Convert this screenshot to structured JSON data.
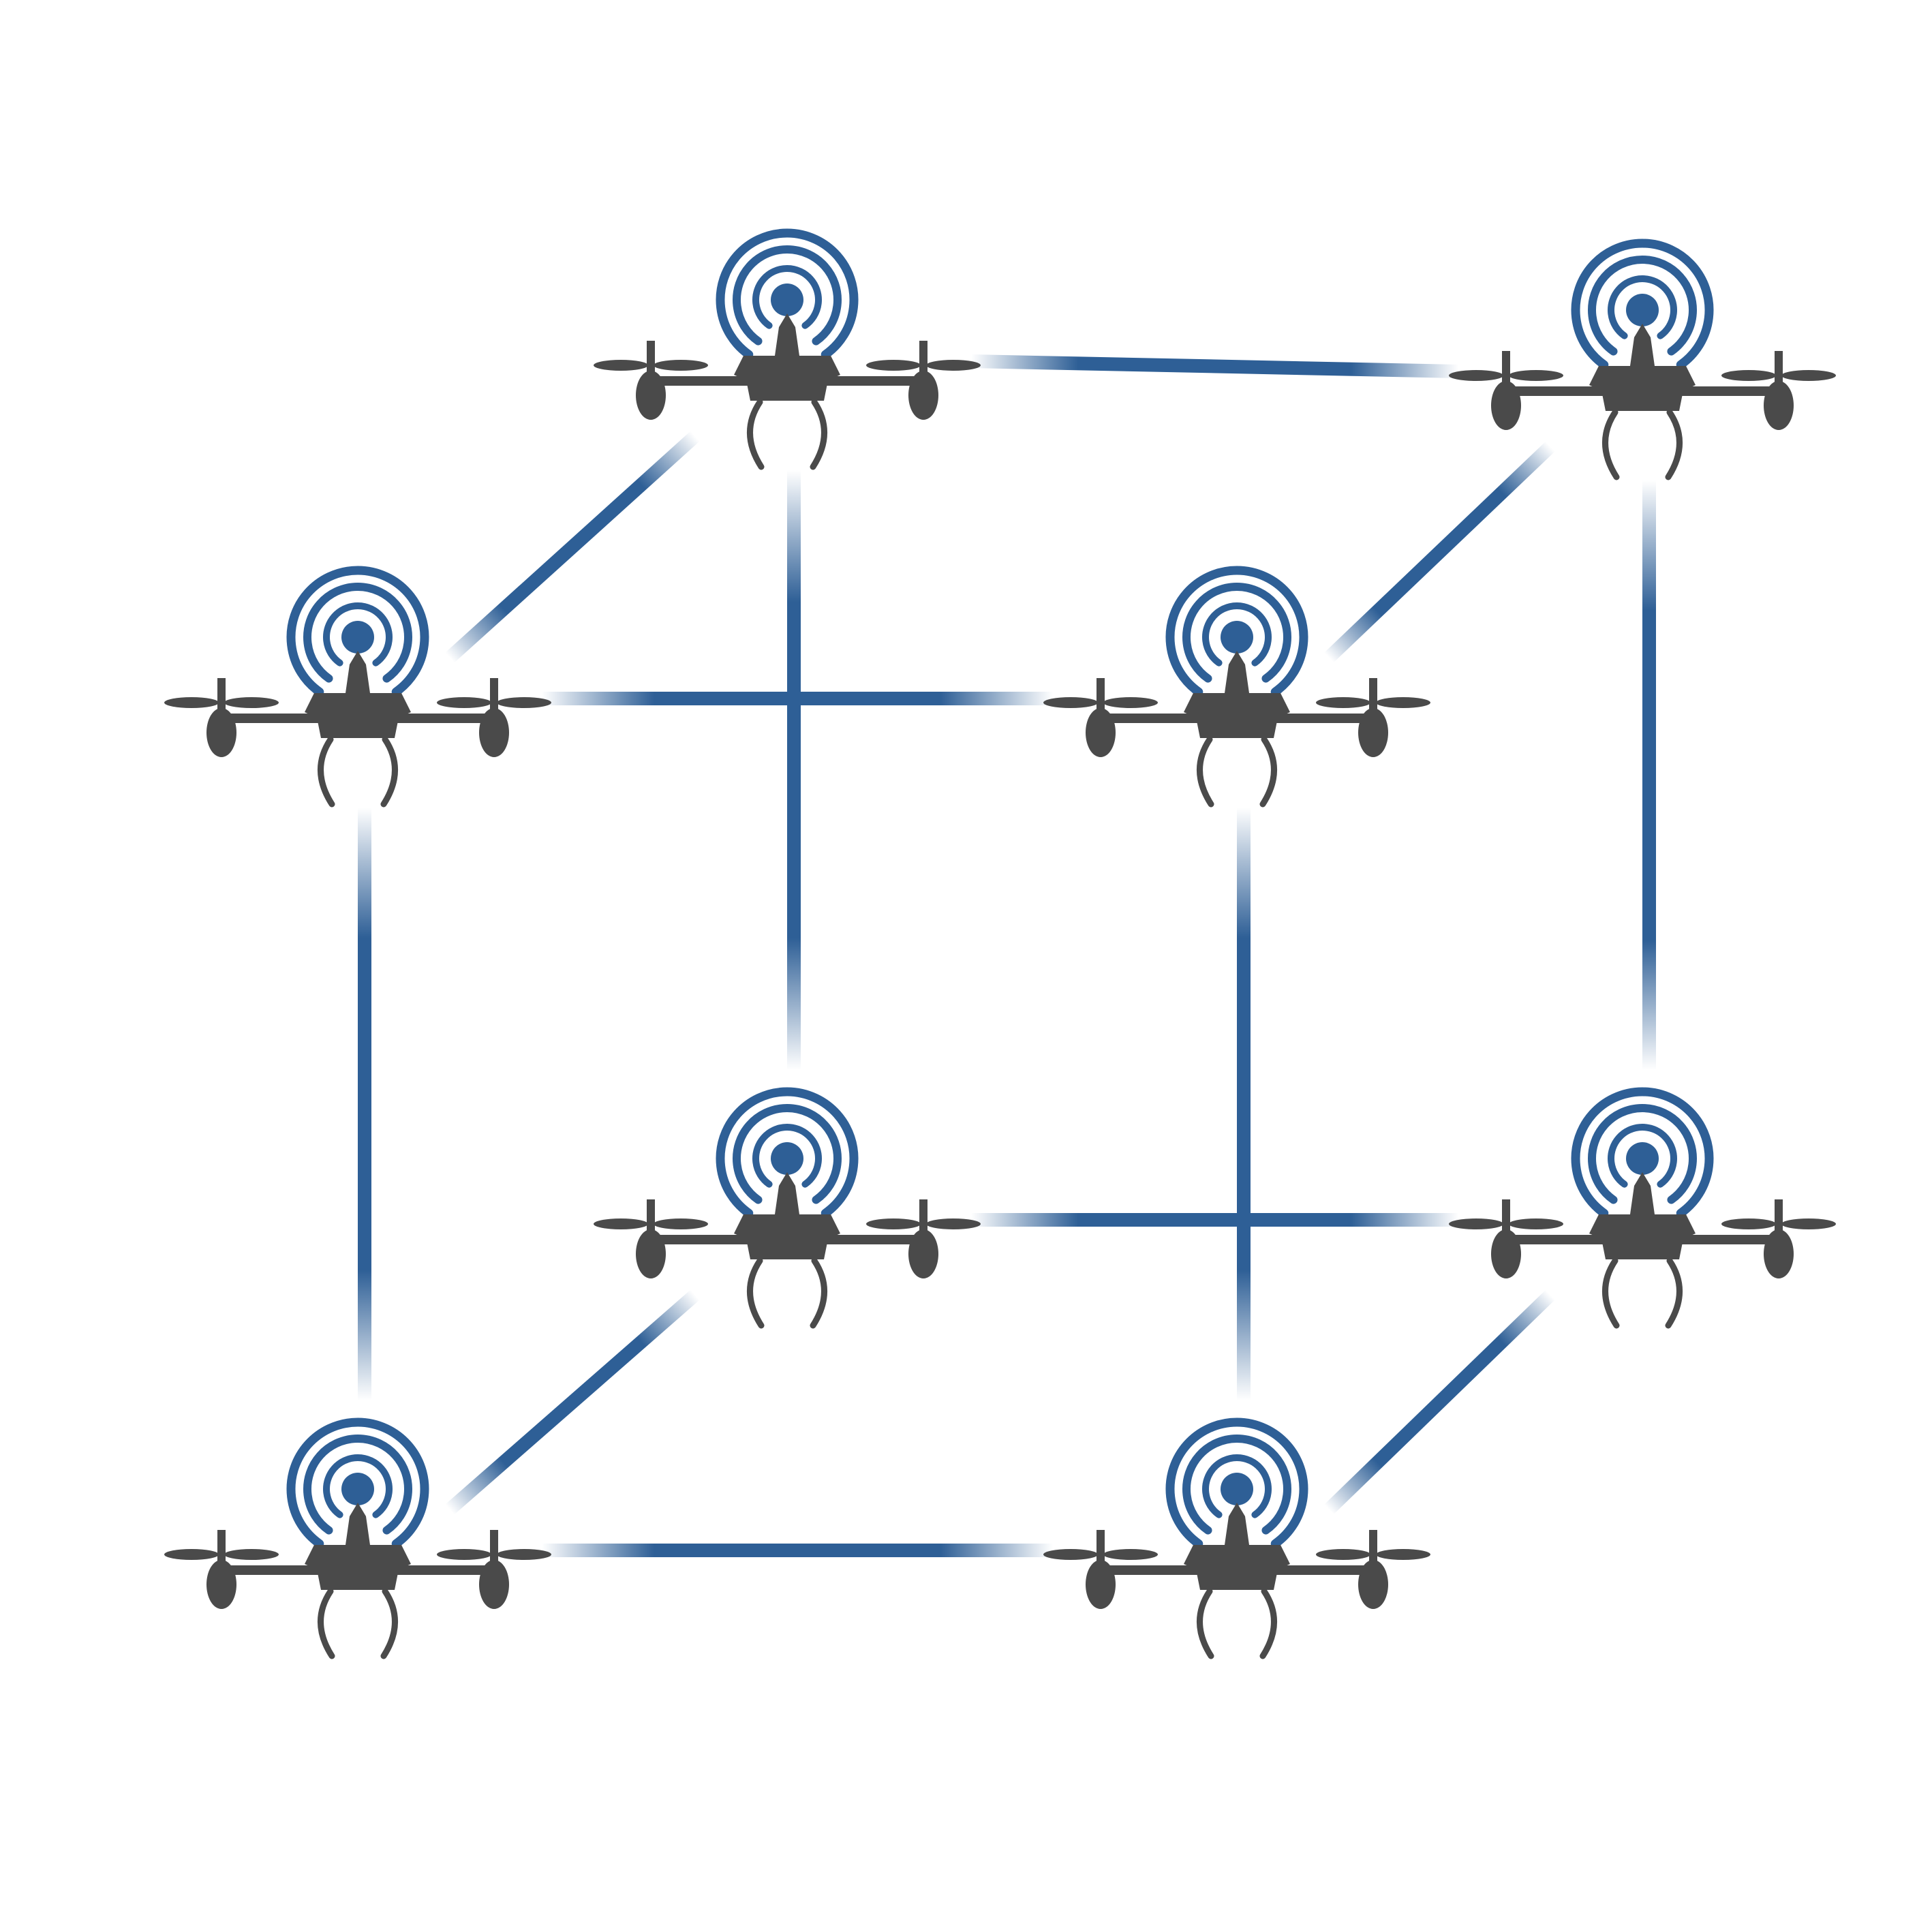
{
  "diagram": {
    "kind": "drone-swarm-network-cube",
    "colors": {
      "background": "#ffffff",
      "drone_body": "#4a4a4a",
      "signal": "#2e5f96",
      "link": "#2e5f96"
    },
    "nodes": [
      {
        "id": "back-top-left",
        "icon": "drone-with-signal-icon"
      },
      {
        "id": "back-top-right",
        "icon": "drone-with-signal-icon"
      },
      {
        "id": "front-top-left",
        "icon": "drone-with-signal-icon"
      },
      {
        "id": "front-top-right",
        "icon": "drone-with-signal-icon"
      },
      {
        "id": "back-bottom-left",
        "icon": "drone-with-signal-icon"
      },
      {
        "id": "back-bottom-right",
        "icon": "drone-with-signal-icon"
      },
      {
        "id": "front-bottom-left",
        "icon": "drone-with-signal-icon"
      },
      {
        "id": "front-bottom-right",
        "icon": "drone-with-signal-icon"
      }
    ],
    "links": [
      {
        "from": "back-top-left",
        "to": "back-top-right"
      },
      {
        "from": "front-top-left",
        "to": "front-top-right"
      },
      {
        "from": "back-bottom-left",
        "to": "back-bottom-right"
      },
      {
        "from": "front-bottom-left",
        "to": "front-bottom-right"
      },
      {
        "from": "front-top-left",
        "to": "back-top-left"
      },
      {
        "from": "front-top-right",
        "to": "back-top-right"
      },
      {
        "from": "front-bottom-left",
        "to": "back-bottom-left"
      },
      {
        "from": "front-bottom-right",
        "to": "back-bottom-right"
      },
      {
        "from": "back-top-left",
        "to": "back-bottom-left"
      },
      {
        "from": "back-top-right",
        "to": "back-bottom-right"
      },
      {
        "from": "front-top-left",
        "to": "front-bottom-left"
      },
      {
        "from": "front-top-right",
        "to": "front-bottom-right"
      }
    ]
  }
}
